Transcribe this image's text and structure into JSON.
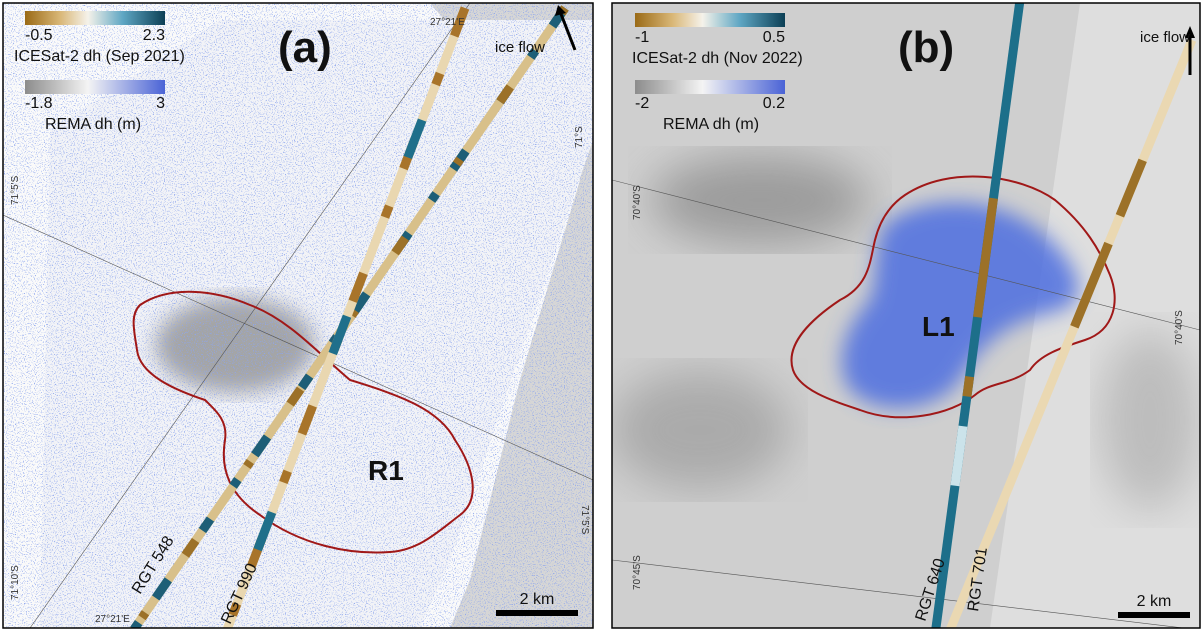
{
  "panels": [
    {
      "label": "(a)",
      "icesat_colorbar": {
        "min": -0.5,
        "max": 2.3,
        "title": "ICESat-2 dh (Sep 2021)"
      },
      "rema_colorbar": {
        "min": -1.8,
        "max": 3,
        "title": "REMA dh (m)"
      },
      "flow_label": "ice flow",
      "coordinate_labels": [
        "27°21'E",
        "71°S",
        "71°5'S",
        "71°5'S",
        "71°10'S",
        "27°21'E"
      ],
      "feature_label": "R1",
      "track_labels": [
        "RGT 548",
        "RGT 990"
      ],
      "scale_bar": "2 km"
    },
    {
      "label": "(b)",
      "icesat_colorbar": {
        "min": -1,
        "max": 0.5,
        "title": "ICESat-2 dh (Nov 2022)"
      },
      "rema_colorbar": {
        "min": -2,
        "max": 0.2,
        "title": "REMA dh (m)"
      },
      "flow_label": "ice flow",
      "coordinate_labels": [
        "70°40'S",
        "70°40'S",
        "70°45'S"
      ],
      "feature_label": "L1",
      "track_labels": [
        "RGT 640",
        "RGT 701"
      ],
      "scale_bar": "2 km"
    }
  ]
}
